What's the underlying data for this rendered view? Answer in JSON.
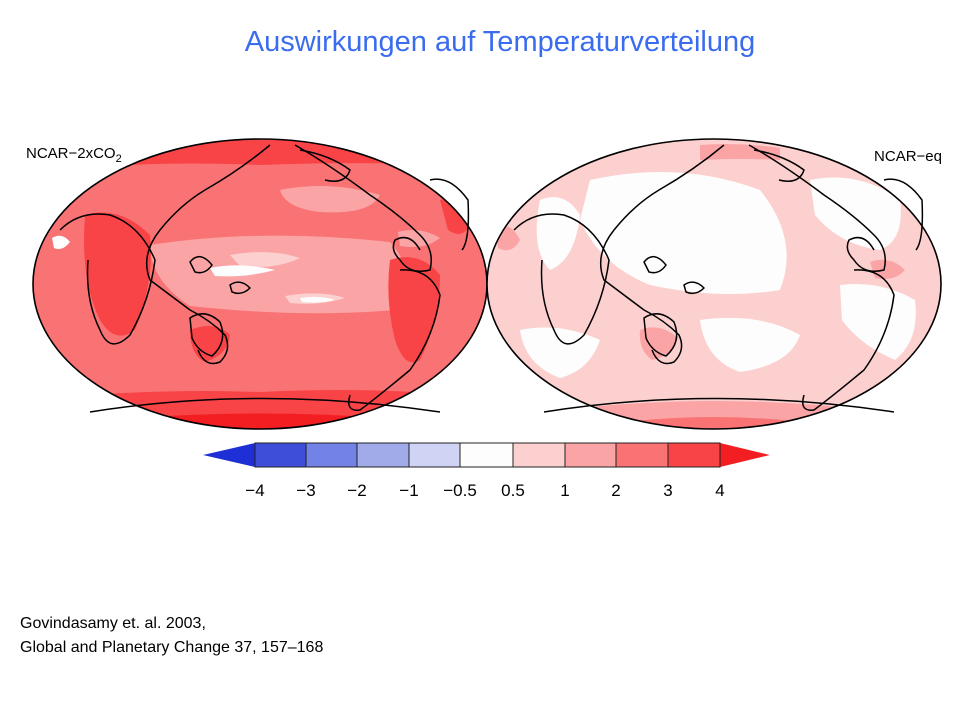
{
  "slide": {
    "title": "Auswirkungen auf Temperaturverteilung"
  },
  "maps": [
    {
      "label_prefix": "NCAR−2xCO",
      "label_subscript": "2"
    },
    {
      "label": "NCAR−eq"
    }
  ],
  "colorbar": {
    "ticks": [
      "−4",
      "−3",
      "−2",
      "−1",
      "−0.5",
      "0.5",
      "1",
      "2",
      "3",
      "4"
    ],
    "colors": {
      "lt_minus4": "#1f2fd6",
      "m4_m3": "#3f4ed9",
      "m3_m2": "#7382e6",
      "m2_m1": "#a2abea",
      "m1_m05": "#cfd3f4",
      "m05_05": "#fdfdfd",
      "p05_1": "#fdd0d0",
      "p1_2": "#fba4a6",
      "p2_3": "#f97374",
      "p3_4": "#f84447",
      "gt_4": "#f21e22"
    }
  },
  "citation": {
    "line1": "Govindasamy et. al. 2003,",
    "line2": "Global and Planetary Change 37, 157–168"
  }
}
